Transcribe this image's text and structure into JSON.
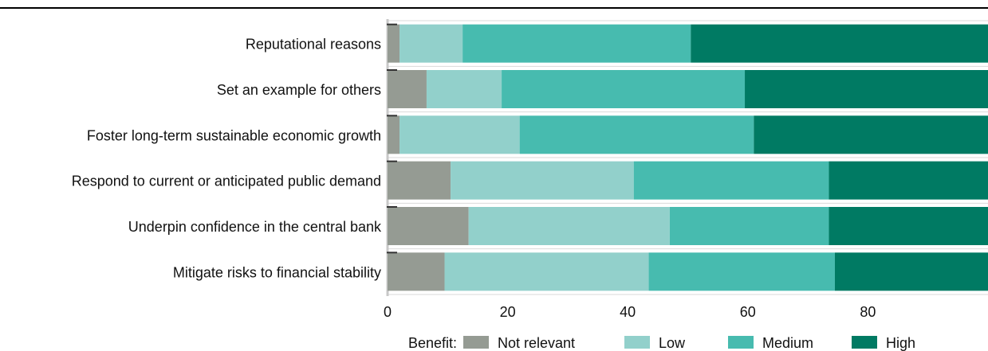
{
  "chart_data": {
    "type": "bar",
    "orientation": "horizontal",
    "stacked": true,
    "categories": [
      "Reputational reasons",
      "Set an example for others",
      "Foster long-term sustainable economic growth",
      "Respond to current or anticipated public demand",
      "Underpin confidence in the central bank",
      "Mitigate risks to financial stability"
    ],
    "series": [
      {
        "name": "Not relevant",
        "values": [
          2,
          6.5,
          2,
          10.5,
          13.5,
          9.5
        ]
      },
      {
        "name": "Low",
        "values": [
          10.5,
          12.5,
          20,
          30.5,
          33.5,
          34
        ]
      },
      {
        "name": "Medium",
        "values": [
          38,
          40.5,
          39,
          32.5,
          26.5,
          31
        ]
      },
      {
        "name": "High",
        "values": [
          49.5,
          40.5,
          39,
          26.5,
          26.5,
          25.5
        ]
      }
    ],
    "colors": [
      "#959b93",
      "#92d0cb",
      "#47bbaf",
      "#007a63"
    ],
    "xlim": [
      0,
      100
    ],
    "xticks": [
      0,
      20,
      40,
      60,
      80
    ],
    "grid": true,
    "legend_title": "Benefit:",
    "legend_position": "bottom"
  }
}
